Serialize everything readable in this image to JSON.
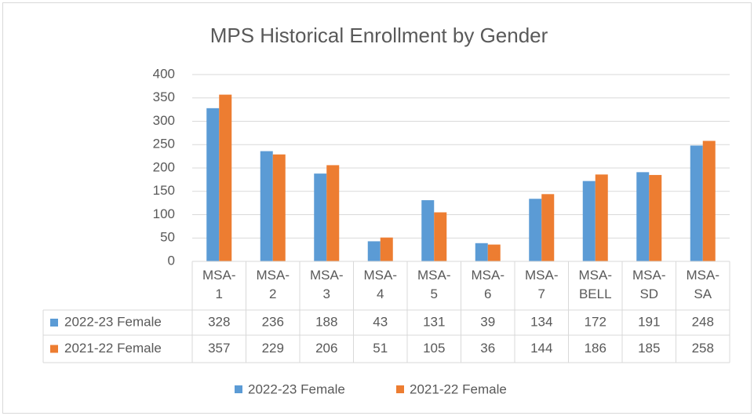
{
  "chart_data": {
    "type": "bar",
    "title": "MPS Historical Enrollment by Gender",
    "categories": [
      "MSA-1",
      "MSA-2",
      "MSA-3",
      "MSA-4",
      "MSA-5",
      "MSA-6",
      "MSA-7",
      "MSA-BELL",
      "MSA-SD",
      "MSA-SA"
    ],
    "series": [
      {
        "name": "2022-23 Female",
        "color": "#5b9bd5",
        "values": [
          328,
          236,
          188,
          43,
          131,
          39,
          134,
          172,
          191,
          248
        ]
      },
      {
        "name": "2021-22 Female",
        "color": "#ed7d31",
        "values": [
          357,
          229,
          206,
          51,
          105,
          36,
          144,
          186,
          185,
          258
        ]
      }
    ],
    "ylim": [
      0,
      400
    ],
    "yticks": [
      0,
      50,
      100,
      150,
      200,
      250,
      300,
      350,
      400
    ],
    "grid": true,
    "legend": "bottom",
    "data_table": true
  }
}
